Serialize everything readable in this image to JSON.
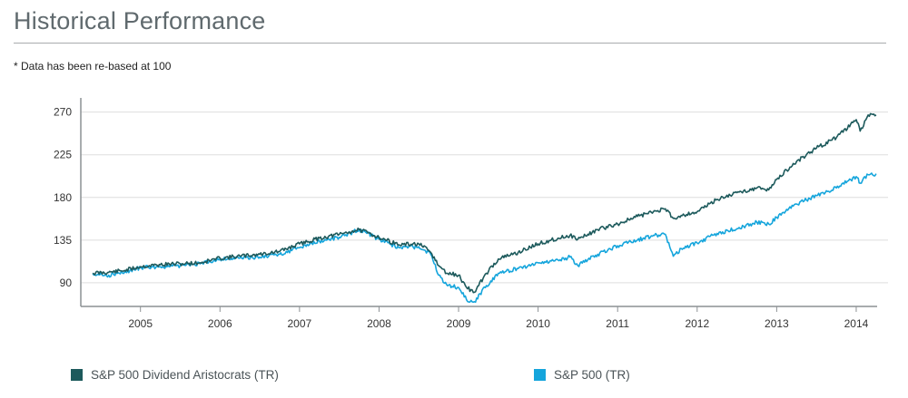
{
  "page": {
    "title": "Historical Performance",
    "note": "* Data has been re-based at 100"
  },
  "colors": {
    "aristocrats": "#1d5a5c",
    "sp500": "#15a5dc",
    "axis": "#8c9194",
    "grid": "#dedede"
  },
  "chart_data": {
    "type": "line",
    "title": "",
    "xlabel": "",
    "ylabel": "",
    "xlim": [
      2004.25,
      2014.4
    ],
    "ylim": [
      65,
      285
    ],
    "x_ticks": [
      2005,
      2006,
      2007,
      2008,
      2009,
      2010,
      2011,
      2012,
      2013,
      2014
    ],
    "x_tick_labels": [
      "2005",
      "2006",
      "2007",
      "2008",
      "2009",
      "2010",
      "2011",
      "2012",
      "2013",
      "2014"
    ],
    "y_ticks": [
      90,
      135,
      180,
      225,
      270
    ],
    "y_tick_labels": [
      "90",
      "135",
      "180",
      "225",
      "270"
    ],
    "grid": true,
    "legend_position": "bottom",
    "series": [
      {
        "name": "S&P 500 Dividend Aristocrats (TR)",
        "x": [
          2004.4,
          2004.6,
          2004.8,
          2005.0,
          2005.25,
          2005.5,
          2005.75,
          2006.0,
          2006.25,
          2006.5,
          2006.75,
          2007.0,
          2007.25,
          2007.5,
          2007.75,
          2008.0,
          2008.25,
          2008.5,
          2008.65,
          2008.75,
          2008.85,
          2009.0,
          2009.1,
          2009.2,
          2009.35,
          2009.5,
          2009.75,
          2010.0,
          2010.25,
          2010.4,
          2010.5,
          2010.75,
          2011.0,
          2011.25,
          2011.45,
          2011.6,
          2011.7,
          2011.8,
          2012.0,
          2012.25,
          2012.5,
          2012.75,
          2012.9,
          2013.0,
          2013.25,
          2013.5,
          2013.75,
          2014.0,
          2014.05,
          2014.15,
          2014.25
        ],
        "values": [
          100,
          101,
          103,
          107,
          109,
          110,
          111,
          116,
          118,
          120,
          123,
          131,
          137,
          141,
          146,
          138,
          130,
          131,
          122,
          108,
          100,
          98,
          85,
          80,
          100,
          115,
          122,
          131,
          137,
          140,
          136,
          146,
          152,
          160,
          165,
          168,
          158,
          161,
          165,
          178,
          185,
          190,
          188,
          199,
          218,
          232,
          243,
          262,
          250,
          267,
          267
        ]
      },
      {
        "name": "S&P 500 (TR)",
        "x": [
          2004.4,
          2004.6,
          2004.8,
          2005.0,
          2005.25,
          2005.5,
          2005.75,
          2006.0,
          2006.25,
          2006.5,
          2006.75,
          2007.0,
          2007.25,
          2007.5,
          2007.75,
          2008.0,
          2008.25,
          2008.5,
          2008.65,
          2008.75,
          2008.85,
          2009.0,
          2009.1,
          2009.2,
          2009.35,
          2009.5,
          2009.75,
          2010.0,
          2010.25,
          2010.4,
          2010.5,
          2010.75,
          2011.0,
          2011.25,
          2011.45,
          2011.6,
          2011.7,
          2011.8,
          2012.0,
          2012.25,
          2012.5,
          2012.75,
          2012.9,
          2013.0,
          2013.25,
          2013.5,
          2013.75,
          2014.0,
          2014.05,
          2014.15,
          2014.25
        ],
        "values": [
          100,
          98,
          101,
          106,
          107,
          108,
          110,
          115,
          116,
          117,
          120,
          127,
          134,
          138,
          146,
          136,
          127,
          128,
          120,
          98,
          88,
          85,
          72,
          70,
          87,
          100,
          105,
          111,
          114,
          117,
          108,
          120,
          129,
          135,
          140,
          141,
          118,
          126,
          132,
          142,
          147,
          154,
          152,
          159,
          173,
          182,
          190,
          202,
          195,
          204,
          205
        ]
      }
    ]
  }
}
